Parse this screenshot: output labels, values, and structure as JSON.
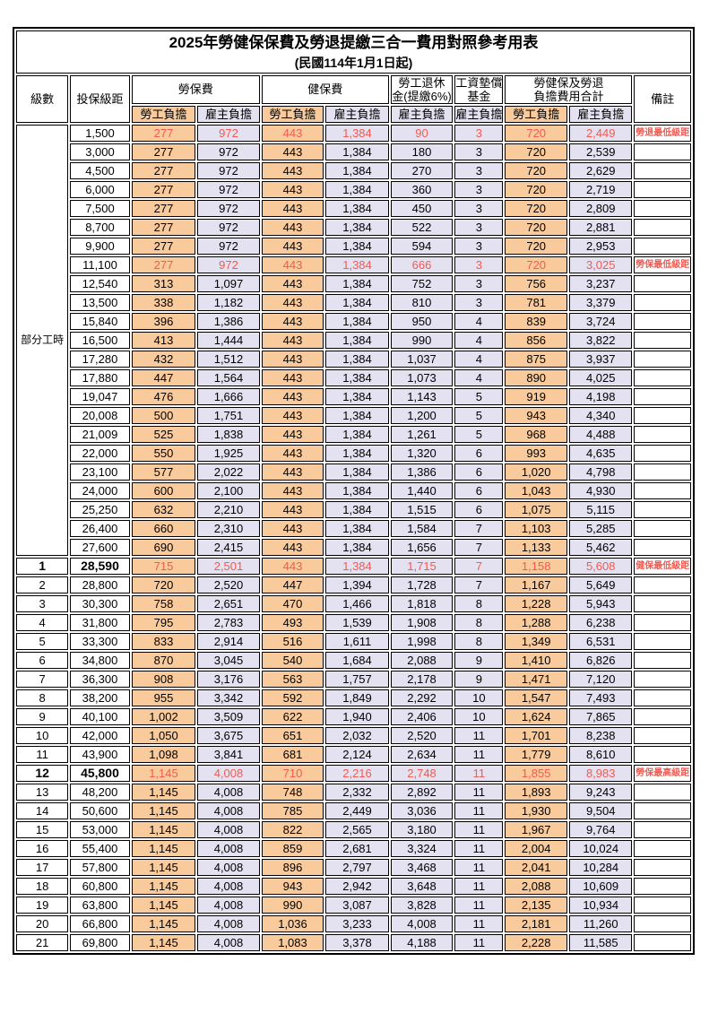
{
  "title": "2025年勞健保保費及勞退提繳三合一費用對照參考用表",
  "subtitle": "(民國114年1月1日起)",
  "header": {
    "level": "級數",
    "bracket": "投保級距",
    "labor_insurance": "勞保費",
    "health_insurance": "健保費",
    "pension_line1": "勞工退休",
    "pension_line2": "金(提繳6%)",
    "wage_fund_line1": "工資墊償",
    "wage_fund_line2": "基金",
    "total_line1": "勞健保及勞退",
    "total_line2": "負擔費用合計",
    "remark": "備註",
    "employee": "勞工負擔",
    "employer": "雇主負擔"
  },
  "part_time_label": "部分工時",
  "colors": {
    "employee_bg": "#F9CB9C",
    "employer_bg": "#E4E1F1",
    "highlight_red": "#F05B52",
    "border": "#000000"
  },
  "column_semantics": [
    "labor-ins-employee",
    "labor-ins-employer",
    "health-ins-employee",
    "health-ins-employer",
    "pension-employer",
    "wage-fund-employer",
    "total-employee",
    "total-employer"
  ],
  "rows": [
    {
      "l": "",
      "b": "1,500",
      "v": [
        "277",
        "972",
        "443",
        "1,384",
        "90",
        "3",
        "720",
        "2,449"
      ],
      "r": "勞退最低級距",
      "red": true,
      "hl": false
    },
    {
      "l": "",
      "b": "3,000",
      "v": [
        "277",
        "972",
        "443",
        "1,384",
        "180",
        "3",
        "720",
        "2,539"
      ],
      "r": "",
      "red": false,
      "hl": false
    },
    {
      "l": "",
      "b": "4,500",
      "v": [
        "277",
        "972",
        "443",
        "1,384",
        "270",
        "3",
        "720",
        "2,629"
      ],
      "r": "",
      "red": false,
      "hl": false
    },
    {
      "l": "",
      "b": "6,000",
      "v": [
        "277",
        "972",
        "443",
        "1,384",
        "360",
        "3",
        "720",
        "2,719"
      ],
      "r": "",
      "red": false,
      "hl": false
    },
    {
      "l": "",
      "b": "7,500",
      "v": [
        "277",
        "972",
        "443",
        "1,384",
        "450",
        "3",
        "720",
        "2,809"
      ],
      "r": "",
      "red": false,
      "hl": false
    },
    {
      "l": "",
      "b": "8,700",
      "v": [
        "277",
        "972",
        "443",
        "1,384",
        "522",
        "3",
        "720",
        "2,881"
      ],
      "r": "",
      "red": false,
      "hl": false
    },
    {
      "l": "",
      "b": "9,900",
      "v": [
        "277",
        "972",
        "443",
        "1,384",
        "594",
        "3",
        "720",
        "2,953"
      ],
      "r": "",
      "red": false,
      "hl": false
    },
    {
      "l": "",
      "b": "11,100",
      "v": [
        "277",
        "972",
        "443",
        "1,384",
        "666",
        "3",
        "720",
        "3,025"
      ],
      "r": "勞保最低級距",
      "red": true,
      "hl": false
    },
    {
      "l": "",
      "b": "12,540",
      "v": [
        "313",
        "1,097",
        "443",
        "1,384",
        "752",
        "3",
        "756",
        "3,237"
      ],
      "r": "",
      "red": false,
      "hl": false
    },
    {
      "l": "",
      "b": "13,500",
      "v": [
        "338",
        "1,182",
        "443",
        "1,384",
        "810",
        "3",
        "781",
        "3,379"
      ],
      "r": "",
      "red": false,
      "hl": false
    },
    {
      "l": "",
      "b": "15,840",
      "v": [
        "396",
        "1,386",
        "443",
        "1,384",
        "950",
        "4",
        "839",
        "3,724"
      ],
      "r": "",
      "red": false,
      "hl": false
    },
    {
      "l": "",
      "b": "16,500",
      "v": [
        "413",
        "1,444",
        "443",
        "1,384",
        "990",
        "4",
        "856",
        "3,822"
      ],
      "r": "",
      "red": false,
      "hl": false
    },
    {
      "l": "",
      "b": "17,280",
      "v": [
        "432",
        "1,512",
        "443",
        "1,384",
        "1,037",
        "4",
        "875",
        "3,937"
      ],
      "r": "",
      "red": false,
      "hl": false
    },
    {
      "l": "",
      "b": "17,880",
      "v": [
        "447",
        "1,564",
        "443",
        "1,384",
        "1,073",
        "4",
        "890",
        "4,025"
      ],
      "r": "",
      "red": false,
      "hl": false
    },
    {
      "l": "",
      "b": "19,047",
      "v": [
        "476",
        "1,666",
        "443",
        "1,384",
        "1,143",
        "5",
        "919",
        "4,198"
      ],
      "r": "",
      "red": false,
      "hl": false
    },
    {
      "l": "",
      "b": "20,008",
      "v": [
        "500",
        "1,751",
        "443",
        "1,384",
        "1,200",
        "5",
        "943",
        "4,340"
      ],
      "r": "",
      "red": false,
      "hl": false
    },
    {
      "l": "",
      "b": "21,009",
      "v": [
        "525",
        "1,838",
        "443",
        "1,384",
        "1,261",
        "5",
        "968",
        "4,488"
      ],
      "r": "",
      "red": false,
      "hl": false
    },
    {
      "l": "",
      "b": "22,000",
      "v": [
        "550",
        "1,925",
        "443",
        "1,384",
        "1,320",
        "6",
        "993",
        "4,635"
      ],
      "r": "",
      "red": false,
      "hl": false
    },
    {
      "l": "",
      "b": "23,100",
      "v": [
        "577",
        "2,022",
        "443",
        "1,384",
        "1,386",
        "6",
        "1,020",
        "4,798"
      ],
      "r": "",
      "red": false,
      "hl": false
    },
    {
      "l": "",
      "b": "24,000",
      "v": [
        "600",
        "2,100",
        "443",
        "1,384",
        "1,440",
        "6",
        "1,043",
        "4,930"
      ],
      "r": "",
      "red": false,
      "hl": false
    },
    {
      "l": "",
      "b": "25,250",
      "v": [
        "632",
        "2,210",
        "443",
        "1,384",
        "1,515",
        "6",
        "1,075",
        "5,115"
      ],
      "r": "",
      "red": false,
      "hl": false
    },
    {
      "l": "",
      "b": "26,400",
      "v": [
        "660",
        "2,310",
        "443",
        "1,384",
        "1,584",
        "7",
        "1,103",
        "5,285"
      ],
      "r": "",
      "red": false,
      "hl": false
    },
    {
      "l": "",
      "b": "27,600",
      "v": [
        "690",
        "2,415",
        "443",
        "1,384",
        "1,656",
        "7",
        "1,133",
        "5,462"
      ],
      "r": "",
      "red": false,
      "hl": false
    },
    {
      "l": "1",
      "b": "28,590",
      "v": [
        "715",
        "2,501",
        "443",
        "1,384",
        "1,715",
        "7",
        "1,158",
        "5,608"
      ],
      "r": "健保最低級距",
      "red": true,
      "hl": true
    },
    {
      "l": "2",
      "b": "28,800",
      "v": [
        "720",
        "2,520",
        "447",
        "1,394",
        "1,728",
        "7",
        "1,167",
        "5,649"
      ],
      "r": "",
      "red": false,
      "hl": false
    },
    {
      "l": "3",
      "b": "30,300",
      "v": [
        "758",
        "2,651",
        "470",
        "1,466",
        "1,818",
        "8",
        "1,228",
        "5,943"
      ],
      "r": "",
      "red": false,
      "hl": false
    },
    {
      "l": "4",
      "b": "31,800",
      "v": [
        "795",
        "2,783",
        "493",
        "1,539",
        "1,908",
        "8",
        "1,288",
        "6,238"
      ],
      "r": "",
      "red": false,
      "hl": false
    },
    {
      "l": "5",
      "b": "33,300",
      "v": [
        "833",
        "2,914",
        "516",
        "1,611",
        "1,998",
        "8",
        "1,349",
        "6,531"
      ],
      "r": "",
      "red": false,
      "hl": false
    },
    {
      "l": "6",
      "b": "34,800",
      "v": [
        "870",
        "3,045",
        "540",
        "1,684",
        "2,088",
        "9",
        "1,410",
        "6,826"
      ],
      "r": "",
      "red": false,
      "hl": false
    },
    {
      "l": "7",
      "b": "36,300",
      "v": [
        "908",
        "3,176",
        "563",
        "1,757",
        "2,178",
        "9",
        "1,471",
        "7,120"
      ],
      "r": "",
      "red": false,
      "hl": false
    },
    {
      "l": "8",
      "b": "38,200",
      "v": [
        "955",
        "3,342",
        "592",
        "1,849",
        "2,292",
        "10",
        "1,547",
        "7,493"
      ],
      "r": "",
      "red": false,
      "hl": false
    },
    {
      "l": "9",
      "b": "40,100",
      "v": [
        "1,002",
        "3,509",
        "622",
        "1,940",
        "2,406",
        "10",
        "1,624",
        "7,865"
      ],
      "r": "",
      "red": false,
      "hl": false
    },
    {
      "l": "10",
      "b": "42,000",
      "v": [
        "1,050",
        "3,675",
        "651",
        "2,032",
        "2,520",
        "11",
        "1,701",
        "8,238"
      ],
      "r": "",
      "red": false,
      "hl": false
    },
    {
      "l": "11",
      "b": "43,900",
      "v": [
        "1,098",
        "3,841",
        "681",
        "2,124",
        "2,634",
        "11",
        "1,779",
        "8,610"
      ],
      "r": "",
      "red": false,
      "hl": false
    },
    {
      "l": "12",
      "b": "45,800",
      "v": [
        "1,145",
        "4,008",
        "710",
        "2,216",
        "2,748",
        "11",
        "1,855",
        "8,983"
      ],
      "r": "勞保最高級距",
      "red": true,
      "hl": true
    },
    {
      "l": "13",
      "b": "48,200",
      "v": [
        "1,145",
        "4,008",
        "748",
        "2,332",
        "2,892",
        "11",
        "1,893",
        "9,243"
      ],
      "r": "",
      "red": false,
      "hl": false
    },
    {
      "l": "14",
      "b": "50,600",
      "v": [
        "1,145",
        "4,008",
        "785",
        "2,449",
        "3,036",
        "11",
        "1,930",
        "9,504"
      ],
      "r": "",
      "red": false,
      "hl": false
    },
    {
      "l": "15",
      "b": "53,000",
      "v": [
        "1,145",
        "4,008",
        "822",
        "2,565",
        "3,180",
        "11",
        "1,967",
        "9,764"
      ],
      "r": "",
      "red": false,
      "hl": false
    },
    {
      "l": "16",
      "b": "55,400",
      "v": [
        "1,145",
        "4,008",
        "859",
        "2,681",
        "3,324",
        "11",
        "2,004",
        "10,024"
      ],
      "r": "",
      "red": false,
      "hl": false
    },
    {
      "l": "17",
      "b": "57,800",
      "v": [
        "1,145",
        "4,008",
        "896",
        "2,797",
        "3,468",
        "11",
        "2,041",
        "10,284"
      ],
      "r": "",
      "red": false,
      "hl": false
    },
    {
      "l": "18",
      "b": "60,800",
      "v": [
        "1,145",
        "4,008",
        "943",
        "2,942",
        "3,648",
        "11",
        "2,088",
        "10,609"
      ],
      "r": "",
      "red": false,
      "hl": false
    },
    {
      "l": "19",
      "b": "63,800",
      "v": [
        "1,145",
        "4,008",
        "990",
        "3,087",
        "3,828",
        "11",
        "2,135",
        "10,934"
      ],
      "r": "",
      "red": false,
      "hl": false
    },
    {
      "l": "20",
      "b": "66,800",
      "v": [
        "1,145",
        "4,008",
        "1,036",
        "3,233",
        "4,008",
        "11",
        "2,181",
        "11,260"
      ],
      "r": "",
      "red": false,
      "hl": false
    },
    {
      "l": "21",
      "b": "69,800",
      "v": [
        "1,145",
        "4,008",
        "1,083",
        "3,378",
        "4,188",
        "11",
        "2,228",
        "11,585"
      ],
      "r": "",
      "red": false,
      "hl": false
    }
  ]
}
